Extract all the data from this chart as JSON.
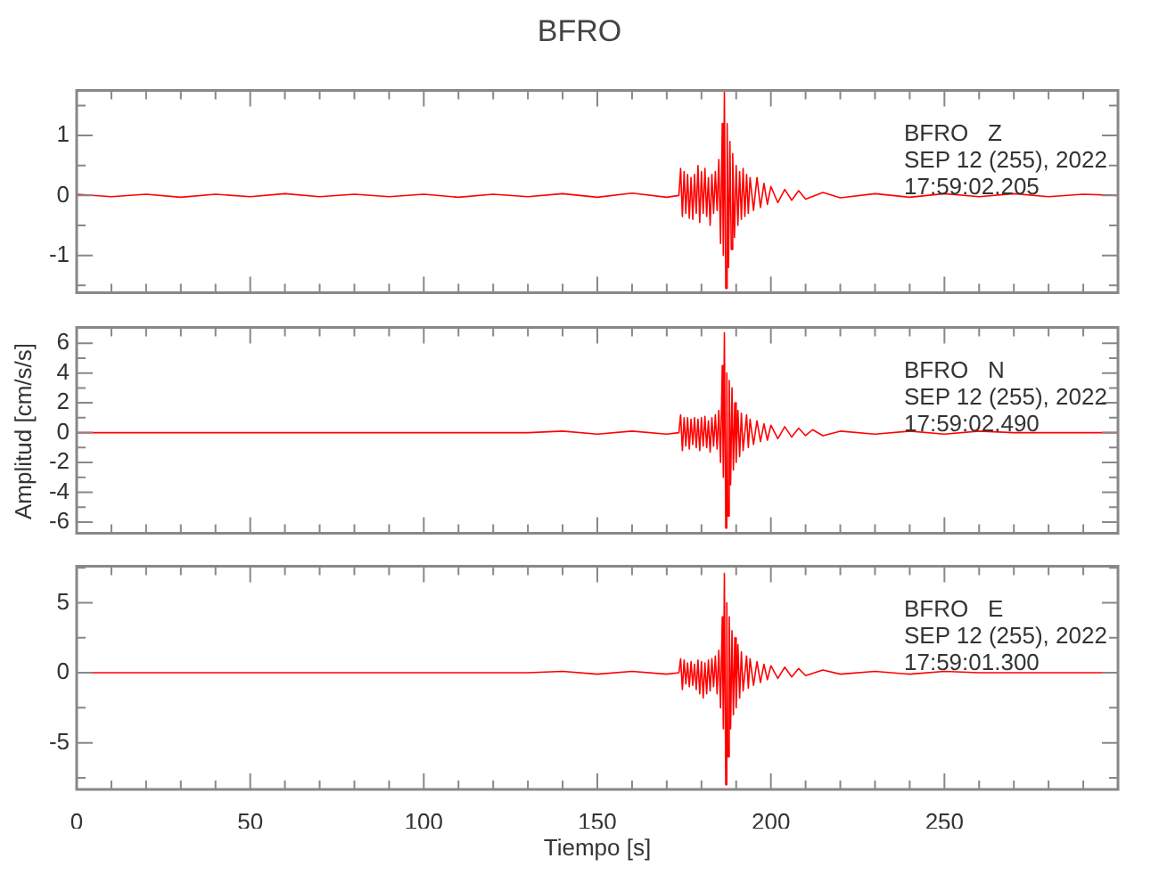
{
  "chart_data": [
    {
      "type": "line",
      "title": "BFRO",
      "annotations": [
        "BFRO   Z",
        "SEP 12 (255), 2022",
        "17:59:02.205"
      ],
      "marker": "none",
      "tick_labels": "y",
      "xlim": [
        0,
        300
      ],
      "ylim": [
        -1.62,
        1.75
      ],
      "xticks": [
        0,
        {
          "value": 10,
          "label": null
        },
        {
          "value": 20,
          "label": null
        },
        {
          "value": 30,
          "label": null
        },
        {
          "value": 40,
          "label": null
        },
        50,
        {
          "value": 60,
          "label": null
        },
        {
          "value": 70,
          "label": null
        },
        {
          "value": 80,
          "label": null
        },
        {
          "value": 90,
          "label": null
        },
        100,
        {
          "value": 110,
          "label": null
        },
        {
          "value": 120,
          "label": null
        },
        {
          "value": 130,
          "label": null
        },
        {
          "value": 140,
          "label": null
        },
        150,
        {
          "value": 160,
          "label": null
        },
        {
          "value": 170,
          "label": null
        },
        {
          "value": 180,
          "label": null
        },
        {
          "value": 190,
          "label": null
        },
        200,
        {
          "value": 210,
          "label": null
        },
        {
          "value": 220,
          "label": null
        },
        {
          "value": 230,
          "label": null
        },
        {
          "value": 240,
          "label": null
        },
        250,
        {
          "value": 260,
          "label": null
        },
        {
          "value": 270,
          "label": null
        },
        {
          "value": 280,
          "label": null
        },
        {
          "value": 290,
          "label": null
        }
      ],
      "yticks": [
        {
          "value": -1.5,
          "label": null
        },
        -1,
        {
          "value": -0.5,
          "label": null
        },
        0,
        {
          "value": 0.5,
          "label": null
        },
        1,
        {
          "value": 1.5,
          "label": null
        }
      ],
      "series": [
        {
          "color": "#ff0000",
          "x": [
            0,
            10,
            20,
            30,
            40,
            50,
            60,
            70,
            80,
            90,
            100,
            110,
            120,
            130,
            140,
            150,
            160,
            170,
            173.5,
            174,
            174.5,
            175,
            175.5,
            176,
            176.5,
            177,
            177.5,
            178,
            178.5,
            179,
            179.5,
            180,
            180.5,
            181,
            181.5,
            182,
            182.5,
            183,
            183.5,
            184,
            184.5,
            185,
            185.5,
            186,
            186.3,
            186.6,
            187,
            187.4,
            187.8,
            188.2,
            188.6,
            189,
            189.5,
            190,
            190.5,
            191,
            191.5,
            192,
            192.5,
            193,
            193.5,
            194,
            195,
            196,
            197,
            198,
            199,
            200,
            202,
            204,
            206,
            208,
            210,
            215,
            220,
            230,
            240,
            250,
            260,
            270,
            280,
            290,
            300
          ],
          "values": [
            0.02,
            -0.02,
            0.02,
            -0.03,
            0.02,
            -0.02,
            0.03,
            -0.02,
            0.02,
            -0.02,
            0.02,
            -0.03,
            0.02,
            -0.02,
            0.03,
            -0.03,
            0.04,
            -0.03,
            0,
            0.45,
            -0.35,
            0.4,
            -0.3,
            0.35,
            -0.38,
            0.3,
            -0.4,
            0.35,
            -0.3,
            0.5,
            -0.45,
            0.4,
            -0.3,
            0.45,
            -0.35,
            0.3,
            -0.5,
            0.35,
            -0.3,
            0.4,
            -0.25,
            0.6,
            -0.8,
            1.2,
            -1,
            1.72,
            -1.55,
            1.2,
            -1.2,
            0.9,
            -0.9,
            0.7,
            -0.7,
            0.5,
            -0.5,
            0.4,
            -0.4,
            0.45,
            -0.35,
            0.35,
            -0.3,
            0.3,
            -0.25,
            0.3,
            -0.2,
            0.2,
            -0.15,
            0.15,
            -0.12,
            0.1,
            -0.08,
            0.08,
            -0.06,
            0.05,
            -0.04,
            0.03,
            -0.03,
            0.03,
            -0.02,
            0.03,
            -0.02,
            0.02,
            0
          ]
        }
      ]
    },
    {
      "type": "line",
      "ylabel": "Amplitud [cm/s/s]",
      "annotations": [
        "BFRO   N",
        "SEP 12 (255), 2022",
        "17:59:02.490"
      ],
      "marker": "none",
      "tick_labels": "y",
      "xlim": [
        0,
        300
      ],
      "ylim": [
        -6.74,
        7.05
      ],
      "xticks": [
        0,
        {
          "value": 10,
          "label": null
        },
        {
          "value": 20,
          "label": null
        },
        {
          "value": 30,
          "label": null
        },
        {
          "value": 40,
          "label": null
        },
        50,
        {
          "value": 60,
          "label": null
        },
        {
          "value": 70,
          "label": null
        },
        {
          "value": 80,
          "label": null
        },
        {
          "value": 90,
          "label": null
        },
        100,
        {
          "value": 110,
          "label": null
        },
        {
          "value": 120,
          "label": null
        },
        {
          "value": 130,
          "label": null
        },
        {
          "value": 140,
          "label": null
        },
        150,
        {
          "value": 160,
          "label": null
        },
        {
          "value": 170,
          "label": null
        },
        {
          "value": 180,
          "label": null
        },
        {
          "value": 190,
          "label": null
        },
        200,
        {
          "value": 210,
          "label": null
        },
        {
          "value": 220,
          "label": null
        },
        {
          "value": 230,
          "label": null
        },
        {
          "value": 240,
          "label": null
        },
        250,
        {
          "value": 260,
          "label": null
        },
        {
          "value": 270,
          "label": null
        },
        {
          "value": 280,
          "label": null
        },
        {
          "value": 290,
          "label": null
        }
      ],
      "yticks": [
        -6,
        {
          "value": -5,
          "label": null
        },
        -4,
        {
          "value": -3,
          "label": null
        },
        -2,
        {
          "value": -1,
          "label": null
        },
        0,
        {
          "value": 1,
          "label": null
        },
        2,
        {
          "value": 3,
          "label": null
        },
        4,
        {
          "value": 5,
          "label": null
        },
        6
      ],
      "series": [
        {
          "color": "#ff0000",
          "x": [
            0,
            10,
            20,
            30,
            40,
            50,
            60,
            70,
            80,
            90,
            100,
            110,
            120,
            130,
            140,
            150,
            160,
            170,
            173.5,
            174,
            174.5,
            175,
            175.5,
            176,
            176.5,
            177,
            177.5,
            178,
            178.5,
            179,
            179.5,
            180,
            180.5,
            181,
            181.5,
            182,
            182.5,
            183,
            183.5,
            184,
            184.5,
            185,
            185.5,
            186,
            186.3,
            186.6,
            187,
            187.3,
            187.6,
            188,
            188.4,
            188.8,
            189.2,
            189.6,
            190,
            190.5,
            191,
            191.5,
            192,
            193,
            193.5,
            194,
            195,
            196,
            197,
            198,
            199,
            200,
            202,
            204,
            206,
            208,
            210,
            212,
            215,
            220,
            230,
            240,
            250,
            260,
            270,
            280,
            290,
            300
          ],
          "values": [
            0,
            0,
            0,
            0,
            0,
            0,
            0,
            0,
            0,
            0,
            0,
            0,
            0,
            0,
            0.1,
            -0.1,
            0.1,
            -0.1,
            0,
            1.2,
            -1.2,
            1,
            -0.9,
            1,
            -1.1,
            0.9,
            -0.8,
            1,
            -1,
            0.9,
            -1.2,
            1,
            -0.9,
            1.1,
            -1,
            0.8,
            -1.3,
            1,
            -0.9,
            1.2,
            -1.1,
            1.5,
            -2,
            4.5,
            -3,
            6.7,
            -6.4,
            4,
            -5.6,
            3.5,
            -3.5,
            3,
            -2.5,
            2,
            -2,
            1.5,
            -1.6,
            1.3,
            -1.2,
            1.2,
            -1,
            0.9,
            -0.8,
            0.8,
            -0.6,
            0.6,
            -0.5,
            0.5,
            -0.4,
            0.4,
            -0.3,
            0.3,
            -0.2,
            0.2,
            -0.2,
            0.1,
            -0.1,
            0.1,
            -0.1,
            0.1,
            0,
            0,
            0,
            0
          ]
        }
      ]
    },
    {
      "type": "line",
      "xlabel": "Tiempo [s]",
      "annotations": [
        "BFRO   E",
        "SEP 12 (255), 2022",
        "17:59:01.300"
      ],
      "marker": "none",
      "xlim": [
        0,
        300
      ],
      "ylim": [
        -8.33,
        7.6
      ],
      "xticks": [
        0,
        {
          "value": 10,
          "label": null
        },
        {
          "value": 20,
          "label": null
        },
        {
          "value": 30,
          "label": null
        },
        {
          "value": 40,
          "label": null
        },
        50,
        {
          "value": 60,
          "label": null
        },
        {
          "value": 70,
          "label": null
        },
        {
          "value": 80,
          "label": null
        },
        {
          "value": 90,
          "label": null
        },
        100,
        {
          "value": 110,
          "label": null
        },
        {
          "value": 120,
          "label": null
        },
        {
          "value": 130,
          "label": null
        },
        {
          "value": 140,
          "label": null
        },
        150,
        {
          "value": 160,
          "label": null
        },
        {
          "value": 170,
          "label": null
        },
        {
          "value": 180,
          "label": null
        },
        {
          "value": 190,
          "label": null
        },
        200,
        {
          "value": 210,
          "label": null
        },
        {
          "value": 220,
          "label": null
        },
        {
          "value": 230,
          "label": null
        },
        {
          "value": 240,
          "label": null
        },
        250,
        {
          "value": 260,
          "label": null
        },
        {
          "value": 270,
          "label": null
        },
        {
          "value": 280,
          "label": null
        },
        {
          "value": 290,
          "label": null
        }
      ],
      "yticks": [
        {
          "value": -7.5,
          "label": null
        },
        -5,
        {
          "value": -2.5,
          "label": null
        },
        0,
        {
          "value": 2.5,
          "label": null
        },
        5,
        {
          "value": 7.5,
          "label": null
        }
      ],
      "series": [
        {
          "color": "#ff0000",
          "x": [
            0,
            10,
            20,
            30,
            40,
            50,
            60,
            70,
            80,
            90,
            100,
            110,
            120,
            130,
            140,
            150,
            160,
            170,
            173.5,
            174,
            174.5,
            175,
            175.5,
            176,
            176.5,
            177,
            177.5,
            178,
            178.5,
            179,
            179.5,
            180,
            180.5,
            181,
            181.5,
            182,
            182.5,
            183,
            183.5,
            184,
            184.5,
            185,
            185.5,
            186,
            186.3,
            186.6,
            187,
            187.3,
            187.6,
            188,
            188.4,
            188.8,
            189.2,
            189.6,
            190,
            190.5,
            191,
            191.5,
            192,
            193,
            193.5,
            194,
            195,
            196,
            197,
            198,
            199,
            200,
            202,
            204,
            206,
            208,
            210,
            215,
            220,
            230,
            240,
            250,
            260,
            270,
            280,
            290,
            300
          ],
          "values": [
            0,
            0,
            0,
            0,
            0,
            0,
            0,
            0,
            0,
            0,
            0,
            0,
            0,
            0,
            0.1,
            -0.1,
            0.1,
            -0.1,
            0,
            1,
            -1.2,
            0.9,
            -0.8,
            0.7,
            -1,
            0.8,
            -0.9,
            0.6,
            -1.2,
            0.9,
            -1.5,
            0.8,
            -1.8,
            0.7,
            -1.5,
            0.9,
            -1.3,
            1,
            -1,
            1.2,
            -1.5,
            1.6,
            -2.5,
            4,
            -4,
            7.1,
            -8,
            5,
            -6,
            4,
            -4,
            3,
            -3,
            2.5,
            -2.5,
            2,
            -1.8,
            1.5,
            -1.3,
            1.2,
            -1.1,
            1,
            -0.9,
            0.8,
            -0.7,
            0.6,
            -0.5,
            0.5,
            -0.4,
            0.4,
            -0.3,
            0.3,
            -0.2,
            0.2,
            -0.1,
            0.1,
            -0.1,
            0.1,
            0,
            0,
            0,
            0,
            0
          ]
        }
      ]
    }
  ]
}
